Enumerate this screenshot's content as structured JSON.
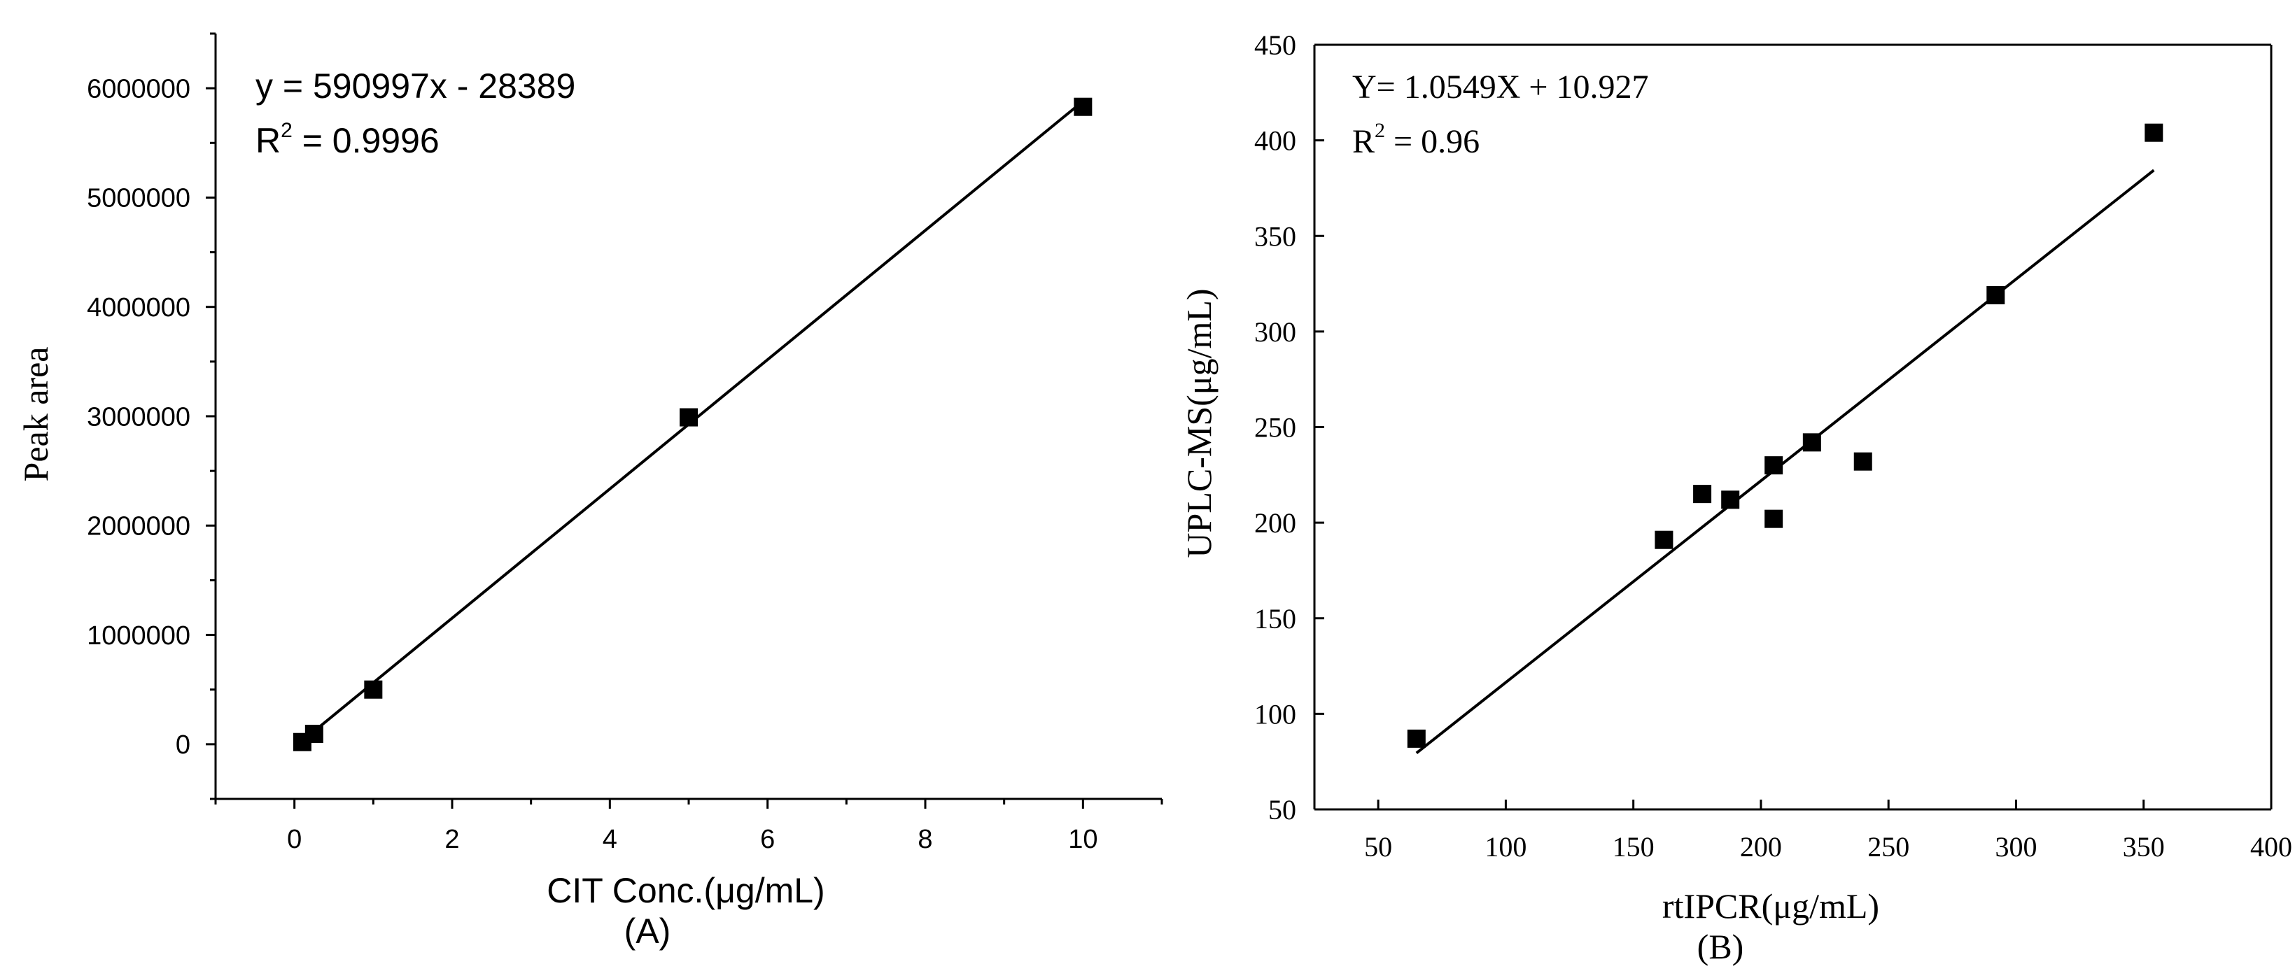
{
  "chart_data": [
    {
      "id": "A",
      "type": "scatter",
      "panel_label": "(A)",
      "xlabel": "CIT Conc.(μg/mL)",
      "ylabel": "Peak area",
      "xlim": [
        -1,
        11
      ],
      "ylim": [
        -500000,
        6500000
      ],
      "xticks": [
        0,
        2,
        4,
        6,
        8,
        10
      ],
      "yticks": [
        0,
        1000000,
        2000000,
        3000000,
        4000000,
        5000000,
        6000000
      ],
      "xtick_labels": [
        "0",
        "2",
        "4",
        "6",
        "8",
        "10"
      ],
      "ytick_labels": [
        "0",
        "1000000",
        "2000000",
        "3000000",
        "4000000",
        "5000000",
        "6000000"
      ],
      "points": [
        {
          "x": 0.1,
          "y": 20000
        },
        {
          "x": 0.25,
          "y": 95000
        },
        {
          "x": 1,
          "y": 500000
        },
        {
          "x": 5,
          "y": 2990000
        },
        {
          "x": 10,
          "y": 5830000
        }
      ],
      "fit": {
        "slope": 590997,
        "intercept": -28389,
        "x_range": [
          0.1,
          10
        ]
      },
      "equation_text": "y = 590997x - 28389",
      "r2_prefix": "R",
      "r2_sup": "2",
      "r2_value": " = 0.9996",
      "grid": false,
      "legend": "none"
    },
    {
      "id": "B",
      "type": "scatter",
      "panel_label": "(B)",
      "xlabel": "rtIPCR(μg/mL)",
      "ylabel": "UPLC-MS(μg/mL)",
      "xlim": [
        25,
        400
      ],
      "ylim": [
        50,
        450
      ],
      "xticks": [
        50,
        100,
        150,
        200,
        250,
        300,
        350,
        400
      ],
      "yticks": [
        50,
        100,
        150,
        200,
        250,
        300,
        350,
        400,
        450
      ],
      "xtick_labels": [
        "50",
        "100",
        "150",
        "200",
        "250",
        "300",
        "350",
        "400"
      ],
      "ytick_labels": [
        "50",
        "100",
        "150",
        "200",
        "250",
        "300",
        "350",
        "400",
        "450"
      ],
      "points": [
        {
          "x": 65,
          "y": 87
        },
        {
          "x": 162,
          "y": 191
        },
        {
          "x": 177,
          "y": 215
        },
        {
          "x": 188,
          "y": 212
        },
        {
          "x": 205,
          "y": 230
        },
        {
          "x": 205,
          "y": 202
        },
        {
          "x": 220,
          "y": 242
        },
        {
          "x": 240,
          "y": 232
        },
        {
          "x": 292,
          "y": 319
        },
        {
          "x": 354,
          "y": 404
        }
      ],
      "fit": {
        "slope": 1.0549,
        "intercept": 10.927,
        "x_range": [
          65,
          354
        ]
      },
      "equation_text": "Y= 1.0549X + 10.927",
      "r2_prefix": "R",
      "r2_sup": "2",
      "r2_value": " = 0.96",
      "grid": false,
      "legend": "none"
    }
  ]
}
